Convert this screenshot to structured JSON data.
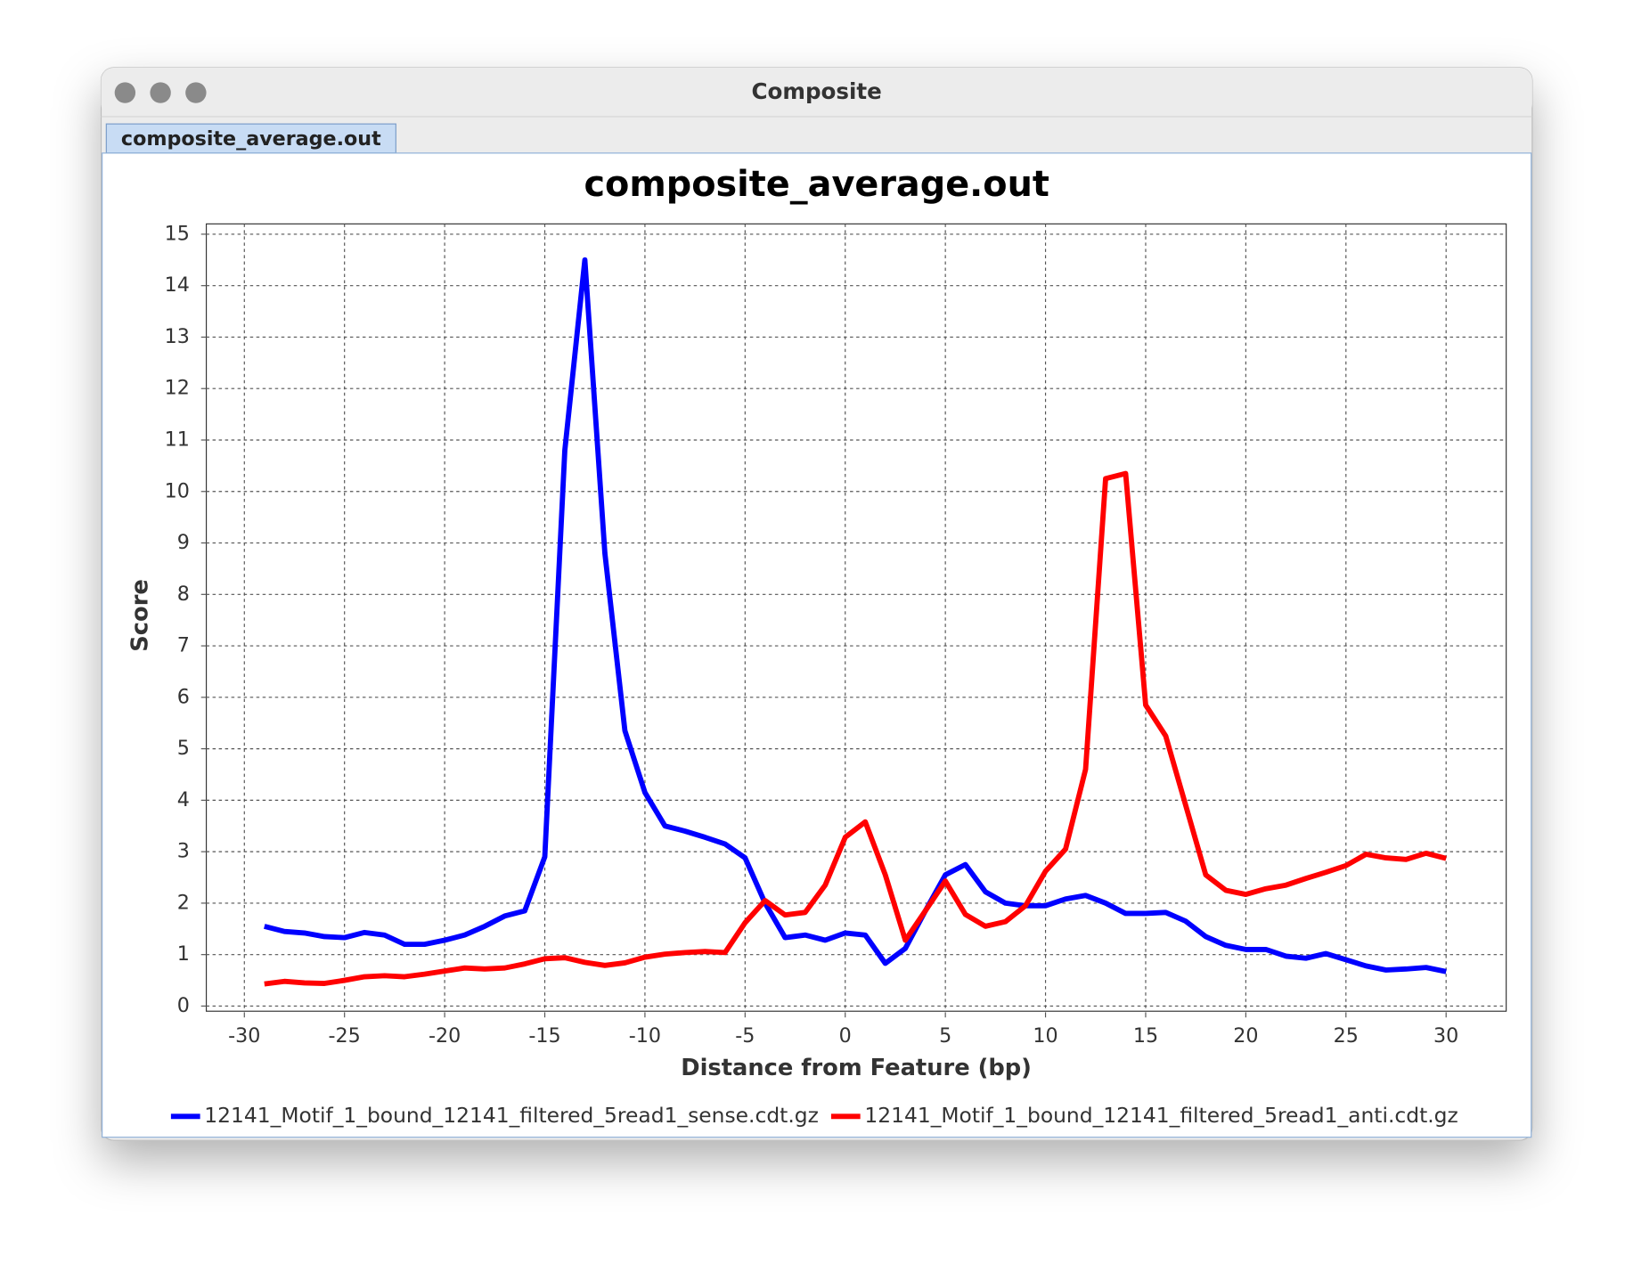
{
  "window": {
    "title": "Composite",
    "tab": "composite_average.out"
  },
  "chart_data": {
    "type": "line",
    "title": "composite_average.out",
    "x_label": "Distance from Feature (bp)",
    "y_label": "Score",
    "x": [
      -29,
      -28,
      -27,
      -26,
      -25,
      -24,
      -23,
      -22,
      -21,
      -20,
      -19,
      -18,
      -17,
      -16,
      -15,
      -14,
      -13,
      -12,
      -11,
      -10,
      -9,
      -8,
      -7,
      -6,
      -5,
      -4,
      -3,
      -2,
      -1,
      0,
      1,
      2,
      3,
      4,
      5,
      6,
      7,
      8,
      9,
      10,
      11,
      12,
      13,
      14,
      15,
      16,
      17,
      18,
      19,
      20,
      21,
      22,
      23,
      24,
      25,
      26,
      27,
      28,
      29,
      30
    ],
    "series": [
      {
        "name": "12141_Motif_1_bound_12141_filtered_5read1_sense.cdt.gz",
        "color": "#0000ff",
        "values": [
          1.55,
          1.45,
          1.42,
          1.35,
          1.33,
          1.43,
          1.38,
          1.2,
          1.2,
          1.28,
          1.38,
          1.55,
          1.75,
          1.85,
          2.9,
          10.8,
          14.5,
          8.8,
          5.35,
          4.15,
          3.5,
          3.4,
          3.28,
          3.15,
          2.88,
          2.0,
          1.33,
          1.38,
          1.28,
          1.42,
          1.38,
          0.83,
          1.12,
          1.85,
          2.55,
          2.75,
          2.22,
          2.0,
          1.95,
          1.95,
          2.08,
          2.15,
          2.0,
          1.8,
          1.8,
          1.82,
          1.65,
          1.35,
          1.18,
          1.1,
          1.1,
          0.97,
          0.93,
          1.02,
          0.9,
          0.78,
          0.7,
          0.72,
          0.75,
          0.67
        ]
      },
      {
        "name": "12141_Motif_1_bound_12141_filtered_5read1_anti.cdt.gz",
        "color": "#ff0000",
        "values": [
          0.43,
          0.48,
          0.45,
          0.44,
          0.5,
          0.57,
          0.59,
          0.57,
          0.62,
          0.68,
          0.74,
          0.72,
          0.74,
          0.82,
          0.92,
          0.94,
          0.85,
          0.79,
          0.84,
          0.95,
          1.01,
          1.04,
          1.06,
          1.04,
          1.62,
          2.05,
          1.77,
          1.82,
          2.35,
          3.28,
          3.58,
          2.55,
          1.28,
          1.85,
          2.43,
          1.78,
          1.55,
          1.64,
          1.95,
          2.62,
          3.05,
          4.6,
          10.25,
          10.35,
          5.85,
          5.25,
          3.9,
          2.55,
          2.25,
          2.17,
          2.28,
          2.35,
          2.48,
          2.6,
          2.73,
          2.95,
          2.88,
          2.85,
          2.97,
          2.87
        ]
      }
    ],
    "xlim": [
      -31.9,
      33
    ],
    "ylim": [
      -0.1,
      15.2
    ],
    "xticks": [
      -30,
      -25,
      -20,
      -15,
      -10,
      -5,
      0,
      5,
      10,
      15,
      20,
      25,
      30
    ],
    "yticks": [
      0,
      1,
      2,
      3,
      4,
      5,
      6,
      7,
      8,
      9,
      10,
      11,
      12,
      13,
      14,
      15
    ],
    "grid": true,
    "legend": "bottom"
  }
}
